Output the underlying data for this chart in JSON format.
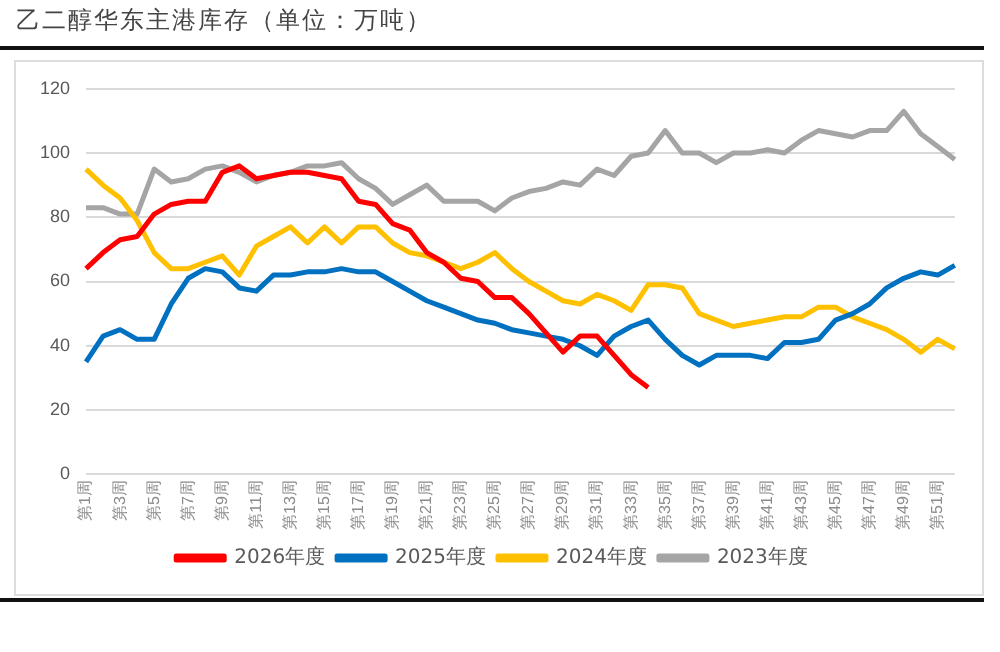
{
  "chart_data": {
    "type": "line",
    "title": "乙二醇华东主港库存（单位：万吨）",
    "categories": [
      "第1周",
      null,
      "第3周",
      null,
      "第5周",
      null,
      "第7周",
      null,
      "第9周",
      null,
      "第11周",
      null,
      "第13周",
      null,
      "第15周",
      null,
      "第17周",
      null,
      "第19周",
      null,
      "第21周",
      null,
      "第23周",
      null,
      "第25周",
      null,
      "第27周",
      null,
      "第29周",
      null,
      "第31周",
      null,
      "第33周",
      null,
      "第35周",
      null,
      "第37周",
      null,
      "第39周",
      null,
      "第41周",
      null,
      "第43周",
      null,
      "第45周",
      null,
      "第47周",
      null,
      "第49周",
      null,
      "第51周",
      null
    ],
    "series": [
      {
        "name": "2026年度",
        "color": "#ff0000",
        "values": [
          64,
          69,
          73,
          74,
          81,
          84,
          85,
          85,
          94,
          96,
          92,
          93,
          94,
          94,
          93,
          92,
          85,
          84,
          78,
          76,
          69,
          66,
          61,
          60,
          55,
          55,
          50,
          44,
          38,
          43,
          43,
          37,
          31,
          27,
          null,
          null,
          null,
          null,
          null,
          null,
          null,
          null,
          null,
          null,
          null,
          null,
          null,
          null,
          null,
          null,
          null,
          null
        ]
      },
      {
        "name": "2025年度",
        "color": "#0070c0",
        "values": [
          35,
          43,
          45,
          42,
          42,
          53,
          61,
          64,
          63,
          58,
          57,
          62,
          62,
          63,
          63,
          64,
          63,
          63,
          60,
          57,
          54,
          52,
          50,
          48,
          47,
          45,
          44,
          43,
          42,
          40,
          37,
          43,
          46,
          48,
          42,
          37,
          34,
          37,
          37,
          37,
          36,
          41,
          41,
          42,
          48,
          50,
          53,
          58,
          61,
          63,
          62,
          65
        ]
      },
      {
        "name": "2024年度",
        "color": "#ffc000",
        "values": [
          95,
          90,
          86,
          79,
          69,
          64,
          64,
          66,
          68,
          62,
          71,
          74,
          77,
          72,
          77,
          72,
          77,
          77,
          72,
          69,
          68,
          66,
          64,
          66,
          69,
          64,
          60,
          57,
          54,
          53,
          56,
          54,
          51,
          59,
          59,
          58,
          50,
          48,
          46,
          47,
          48,
          49,
          49,
          52,
          52,
          49,
          47,
          45,
          42,
          38,
          42,
          39
        ]
      },
      {
        "name": "2023年度",
        "color": "#a5a5a5",
        "values": [
          83,
          83,
          81,
          81,
          95,
          91,
          92,
          95,
          96,
          94,
          91,
          93,
          94,
          96,
          96,
          97,
          92,
          89,
          84,
          87,
          90,
          85,
          85,
          85,
          82,
          86,
          88,
          89,
          91,
          90,
          95,
          93,
          99,
          100,
          107,
          100,
          100,
          97,
          100,
          100,
          101,
          100,
          104,
          107,
          106,
          105,
          107,
          107,
          113,
          106,
          102,
          98
        ]
      }
    ],
    "ylim": [
      0,
      120
    ],
    "yticks": [
      0,
      20,
      40,
      60,
      80,
      100,
      120
    ],
    "grid": "y",
    "legend": "bottom",
    "marker": "none",
    "line_style": "solid"
  }
}
